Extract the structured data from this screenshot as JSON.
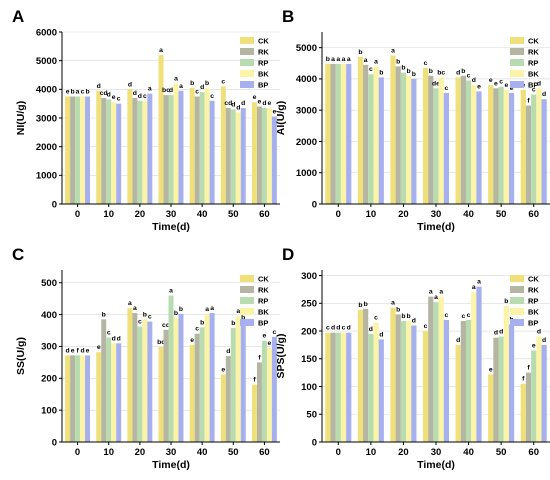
{
  "colors": {
    "CK": "#f0e07a",
    "RK": "#b5b5a3",
    "RP": "#b8dcb0",
    "BK": "#fbf4a6",
    "BP": "#a7b0ee"
  },
  "chart_data": [
    {
      "panel": "A",
      "type": "bar",
      "xlabel": "Time(d)",
      "ylabel": "NI(U/g)",
      "categories": [
        "0",
        "10",
        "20",
        "30",
        "40",
        "50",
        "60"
      ],
      "ylim": [
        0,
        6000
      ],
      "yticks": [
        0,
        1000,
        2000,
        3000,
        4000,
        5000,
        6000
      ],
      "legend_position": "top-right",
      "series": [
        {
          "name": "CK",
          "values": [
            3750,
            3950,
            4000,
            5200,
            4050,
            4100,
            3550
          ],
          "letters": [
            "e",
            "d",
            "d",
            "a",
            "b",
            "c",
            "e"
          ]
        },
        {
          "name": "RK",
          "values": [
            3750,
            3700,
            3700,
            3800,
            3750,
            3350,
            3400
          ],
          "letters": [
            "b",
            "cd",
            "d",
            "bc",
            "c",
            "cd",
            "e"
          ]
        },
        {
          "name": "RP",
          "values": [
            3750,
            3650,
            3600,
            3800,
            3900,
            3300,
            3350
          ],
          "letters": [
            "a",
            "d",
            "d",
            "d",
            "d",
            "d",
            "d"
          ]
        },
        {
          "name": "BK",
          "values": [
            3750,
            3550,
            3600,
            4200,
            4050,
            3200,
            3350
          ],
          "letters": [
            "c",
            "e",
            "c",
            "a",
            "b",
            "d",
            "e"
          ]
        },
        {
          "name": "BP",
          "values": [
            3750,
            3500,
            3850,
            3950,
            3600,
            3350,
            3050
          ],
          "letters": [
            "b",
            "c",
            "a",
            "a",
            "c",
            "d",
            "e"
          ]
        }
      ]
    },
    {
      "panel": "B",
      "type": "bar",
      "xlabel": "Time(d)",
      "ylabel": "AI(U/g)",
      "categories": [
        "0",
        "10",
        "20",
        "30",
        "40",
        "50",
        "60"
      ],
      "ylim": [
        0,
        5500
      ],
      "yticks": [
        0,
        1000,
        2000,
        3000,
        4000,
        5000
      ],
      "legend_position": "top-right",
      "series": [
        {
          "name": "CK",
          "values": [
            4480,
            4700,
            4750,
            4350,
            4050,
            3800,
            3650
          ],
          "letters": [
            "b",
            "b",
            "a",
            "c",
            "d",
            "e",
            "e"
          ]
        },
        {
          "name": "RK",
          "values": [
            4480,
            4450,
            4400,
            4100,
            4100,
            3700,
            3150
          ],
          "letters": [
            "a",
            "a",
            "b",
            "b",
            "b",
            "e",
            "f"
          ]
        },
        {
          "name": "RP",
          "values": [
            4480,
            4150,
            4200,
            3700,
            3950,
            3750,
            3500
          ],
          "letters": [
            "a",
            "c",
            "b",
            "de",
            "c",
            "c",
            "c"
          ]
        },
        {
          "name": "BK",
          "values": [
            4480,
            4400,
            4100,
            4050,
            3800,
            3650,
            3700
          ],
          "letters": [
            "a",
            "a",
            "b",
            "bc",
            "d",
            "e",
            "d"
          ]
        },
        {
          "name": "BP",
          "values": [
            4480,
            4050,
            4000,
            3550,
            3600,
            3550,
            3350
          ],
          "letters": [
            "a",
            "b",
            "b",
            "c",
            "e",
            "e",
            "d"
          ]
        }
      ]
    },
    {
      "panel": "C",
      "type": "bar",
      "xlabel": "Time(d)",
      "ylabel": "SS(U/g)",
      "categories": [
        "0",
        "10",
        "20",
        "30",
        "40",
        "50",
        "60"
      ],
      "ylim": [
        0,
        540
      ],
      "yticks": [
        0,
        100,
        200,
        300,
        400,
        500
      ],
      "legend_position": "top-right",
      "series": [
        {
          "name": "CK",
          "values": [
            272,
            282,
            420,
            298,
            305,
            212,
            180
          ],
          "letters": [
            "d",
            "e",
            "a",
            "bc",
            "e",
            "e",
            "f"
          ]
        },
        {
          "name": "RK",
          "values": [
            272,
            385,
            405,
            352,
            340,
            270,
            250
          ],
          "letters": [
            "e",
            "b",
            "a",
            "cd",
            "c",
            "d",
            "f"
          ]
        },
        {
          "name": "RP",
          "values": [
            272,
            328,
            362,
            460,
            360,
            358,
            318
          ],
          "letters": [
            "f",
            "c",
            "c",
            "a",
            "b",
            "b",
            "e"
          ]
        },
        {
          "name": "BK",
          "values": [
            272,
            310,
            385,
            390,
            402,
            395,
            295
          ],
          "letters": [
            "d",
            "d",
            "b",
            "b",
            "a",
            "a",
            "e"
          ]
        },
        {
          "name": "BP",
          "values": [
            272,
            310,
            378,
            402,
            405,
            375,
            330
          ],
          "letters": [
            "e",
            "d",
            "c",
            "b",
            "a",
            "b",
            "c"
          ]
        }
      ]
    },
    {
      "panel": "D",
      "type": "bar",
      "xlabel": "Time(d)",
      "ylabel": "SPS(U/g)",
      "categories": [
        "0",
        "10",
        "20",
        "30",
        "40",
        "50",
        "60"
      ],
      "ylim": [
        0,
        310
      ],
      "yticks": [
        0,
        50,
        100,
        150,
        200,
        250,
        300
      ],
      "legend_position": "top-right",
      "series": [
        {
          "name": "CK",
          "values": [
            197,
            238,
            242,
            200,
            175,
            122,
            105
          ],
          "letters": [
            "c",
            "b",
            "a",
            "c",
            "d",
            "e",
            "f"
          ]
        },
        {
          "name": "RK",
          "values": [
            197,
            240,
            230,
            262,
            218,
            188,
            125
          ],
          "letters": [
            "d",
            "b",
            "b",
            "a",
            "c",
            "d",
            "f"
          ]
        },
        {
          "name": "RP",
          "values": [
            197,
            195,
            218,
            252,
            220,
            190,
            165
          ],
          "letters": [
            "d",
            "d",
            "b",
            "a",
            "c",
            "d",
            "e"
          ]
        },
        {
          "name": "BK",
          "values": [
            197,
            215,
            218,
            262,
            270,
            245,
            190
          ],
          "letters": [
            "c",
            "c",
            "b",
            "a",
            "a",
            "b",
            "d"
          ]
        },
        {
          "name": "BP",
          "values": [
            197,
            185,
            210,
            220,
            280,
            212,
            175
          ],
          "letters": [
            "d",
            "d",
            "d",
            "c",
            "a",
            "b",
            "d"
          ]
        }
      ]
    }
  ]
}
